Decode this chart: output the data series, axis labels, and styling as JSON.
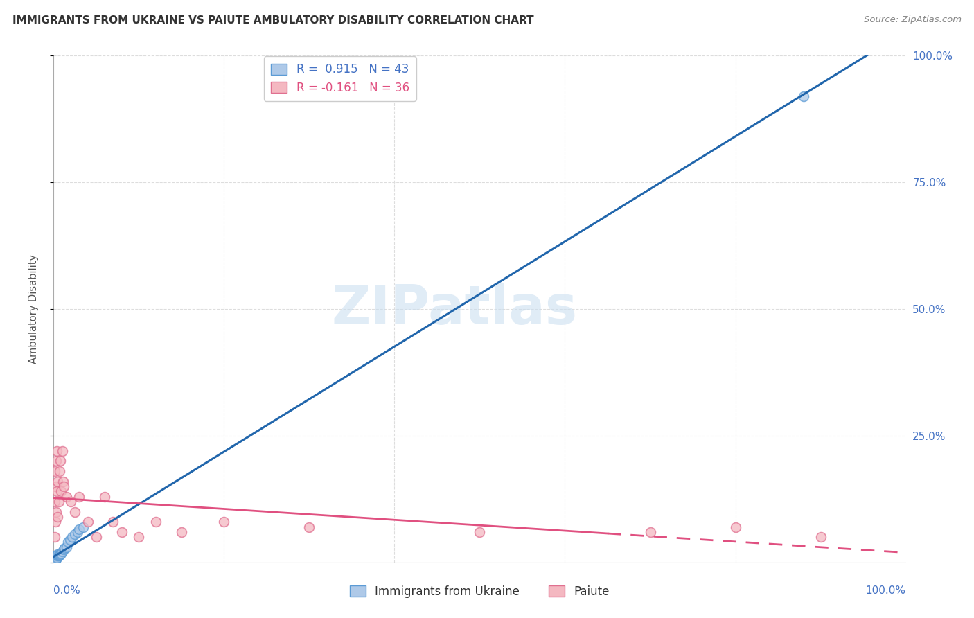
{
  "title": "IMMIGRANTS FROM UKRAINE VS PAIUTE AMBULATORY DISABILITY CORRELATION CHART",
  "source": "Source: ZipAtlas.com",
  "ylabel": "Ambulatory Disability",
  "legend1_label": "Immigrants from Ukraine",
  "legend2_label": "Paiute",
  "R_ukraine": 0.915,
  "N_ukraine": 43,
  "R_paiute": -0.161,
  "N_paiute": 36,
  "ukraine_fill_color": "#aec9e8",
  "ukraine_edge_color": "#5b9bd5",
  "paiute_fill_color": "#f4b8c1",
  "paiute_edge_color": "#e07090",
  "ukraine_line_color": "#2166ac",
  "paiute_line_color": "#e05080",
  "watermark": "ZIPatlas",
  "ukraine_x": [
    0.001,
    0.001,
    0.001,
    0.001,
    0.001,
    0.001,
    0.001,
    0.001,
    0.001,
    0.002,
    0.002,
    0.002,
    0.002,
    0.002,
    0.002,
    0.002,
    0.003,
    0.003,
    0.003,
    0.003,
    0.003,
    0.004,
    0.004,
    0.004,
    0.005,
    0.005,
    0.006,
    0.006,
    0.007,
    0.008,
    0.009,
    0.01,
    0.012,
    0.013,
    0.015,
    0.017,
    0.019,
    0.022,
    0.025,
    0.028,
    0.03,
    0.035,
    0.88
  ],
  "ukraine_y": [
    0.005,
    0.008,
    0.01,
    0.012,
    0.007,
    0.003,
    0.006,
    0.009,
    0.004,
    0.008,
    0.01,
    0.012,
    0.005,
    0.007,
    0.009,
    0.006,
    0.01,
    0.013,
    0.008,
    0.012,
    0.007,
    0.012,
    0.009,
    0.015,
    0.013,
    0.016,
    0.013,
    0.015,
    0.014,
    0.016,
    0.018,
    0.022,
    0.025,
    0.028,
    0.03,
    0.04,
    0.045,
    0.05,
    0.055,
    0.06,
    0.065,
    0.07,
    0.92
  ],
  "paiute_x": [
    0.001,
    0.001,
    0.001,
    0.002,
    0.002,
    0.003,
    0.003,
    0.004,
    0.004,
    0.005,
    0.005,
    0.006,
    0.007,
    0.008,
    0.009,
    0.01,
    0.011,
    0.012,
    0.015,
    0.02,
    0.025,
    0.03,
    0.04,
    0.05,
    0.06,
    0.07,
    0.08,
    0.1,
    0.12,
    0.15,
    0.2,
    0.3,
    0.5,
    0.7,
    0.8,
    0.9
  ],
  "paiute_y": [
    0.05,
    0.12,
    0.18,
    0.08,
    0.15,
    0.1,
    0.2,
    0.14,
    0.22,
    0.16,
    0.09,
    0.12,
    0.18,
    0.2,
    0.14,
    0.22,
    0.16,
    0.15,
    0.13,
    0.12,
    0.1,
    0.13,
    0.08,
    0.05,
    0.13,
    0.08,
    0.06,
    0.05,
    0.08,
    0.06,
    0.08,
    0.07,
    0.06,
    0.06,
    0.07,
    0.05
  ],
  "xlim": [
    0.0,
    1.0
  ],
  "ylim": [
    0.0,
    1.0
  ],
  "yticks": [
    0.0,
    0.25,
    0.5,
    0.75,
    1.0
  ],
  "ytick_labels_right": [
    "",
    "25.0%",
    "50.0%",
    "75.0%",
    "100.0%"
  ],
  "xtick_labels": [
    "0.0%",
    "100.0%"
  ],
  "grid_color": "#dddddd",
  "background_color": "#ffffff"
}
